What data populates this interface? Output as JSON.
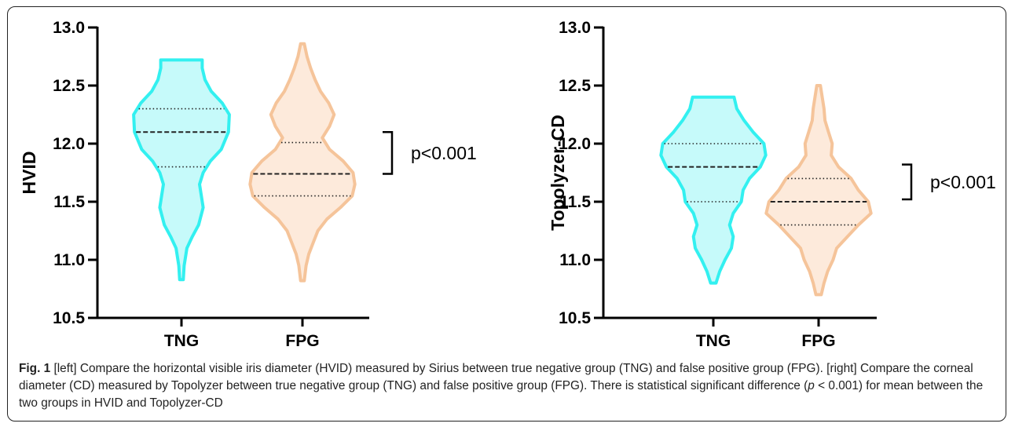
{
  "chart_data": [
    {
      "type": "violin",
      "ylabel": "HVID",
      "ylim": [
        10.5,
        13.0
      ],
      "yticks": [
        "13.0",
        "12.5",
        "12.0",
        "11.5",
        "11.0",
        "10.5"
      ],
      "categories": [
        "TNG",
        "FPG"
      ],
      "colors": {
        "TNG": "#33f0f0",
        "FPG": "#f5c49a"
      },
      "fills": {
        "TNG": "#c6fafa",
        "FPG": "#fdeadb"
      },
      "series": [
        {
          "name": "TNG",
          "range": [
            10.83,
            12.72
          ],
          "median": 12.1,
          "q1": 11.8,
          "q3": 12.3,
          "density": [
            [
              10.83,
              0.02
            ],
            [
              10.95,
              0.03
            ],
            [
              11.1,
              0.06
            ],
            [
              11.2,
              0.12
            ],
            [
              11.3,
              0.19
            ],
            [
              11.45,
              0.24
            ],
            [
              11.55,
              0.22
            ],
            [
              11.65,
              0.2
            ],
            [
              11.75,
              0.24
            ],
            [
              11.85,
              0.32
            ],
            [
              11.95,
              0.44
            ],
            [
              12.1,
              0.52
            ],
            [
              12.25,
              0.53
            ],
            [
              12.35,
              0.45
            ],
            [
              12.45,
              0.33
            ],
            [
              12.55,
              0.26
            ],
            [
              12.65,
              0.23
            ],
            [
              12.72,
              0.23
            ]
          ]
        },
        {
          "name": "FPG",
          "range": [
            10.82,
            12.86
          ],
          "median": 11.74,
          "q1": 11.55,
          "q3": 12.01,
          "density": [
            [
              10.82,
              0.02
            ],
            [
              10.95,
              0.04
            ],
            [
              11.05,
              0.07
            ],
            [
              11.15,
              0.12
            ],
            [
              11.25,
              0.17
            ],
            [
              11.35,
              0.27
            ],
            [
              11.45,
              0.42
            ],
            [
              11.55,
              0.55
            ],
            [
              11.65,
              0.58
            ],
            [
              11.75,
              0.56
            ],
            [
              11.85,
              0.45
            ],
            [
              11.95,
              0.3
            ],
            [
              12.05,
              0.22
            ],
            [
              12.15,
              0.3
            ],
            [
              12.25,
              0.35
            ],
            [
              12.35,
              0.29
            ],
            [
              12.45,
              0.2
            ],
            [
              12.55,
              0.14
            ],
            [
              12.65,
              0.09
            ],
            [
              12.75,
              0.05
            ],
            [
              12.86,
              0.02
            ]
          ]
        }
      ],
      "annotation": "p<0.001"
    },
    {
      "type": "violin",
      "ylabel": "Topolyzer-CD",
      "ylim": [
        10.5,
        13.0
      ],
      "yticks": [
        "13.0",
        "12.5",
        "12.0",
        "11.5",
        "11.0",
        "10.5"
      ],
      "categories": [
        "TNG",
        "FPG"
      ],
      "colors": {
        "TNG": "#33f0f0",
        "FPG": "#f5c49a"
      },
      "fills": {
        "TNG": "#c6fafa",
        "FPG": "#fdeadb"
      },
      "series": [
        {
          "name": "TNG",
          "range": [
            10.8,
            12.4
          ],
          "median": 11.8,
          "q1": 11.5,
          "q3": 12.0,
          "density": [
            [
              10.8,
              0.03
            ],
            [
              10.9,
              0.07
            ],
            [
              11.0,
              0.13
            ],
            [
              11.1,
              0.2
            ],
            [
              11.2,
              0.22
            ],
            [
              11.3,
              0.18
            ],
            [
              11.4,
              0.22
            ],
            [
              11.5,
              0.31
            ],
            [
              11.6,
              0.33
            ],
            [
              11.7,
              0.4
            ],
            [
              11.8,
              0.52
            ],
            [
              11.9,
              0.58
            ],
            [
              12.0,
              0.56
            ],
            [
              12.1,
              0.44
            ],
            [
              12.2,
              0.34
            ],
            [
              12.3,
              0.26
            ],
            [
              12.4,
              0.23
            ]
          ]
        },
        {
          "name": "FPG",
          "range": [
            10.7,
            12.5
          ],
          "median": 11.5,
          "q1": 11.3,
          "q3": 11.7,
          "density": [
            [
              10.7,
              0.03
            ],
            [
              10.8,
              0.06
            ],
            [
              10.9,
              0.1
            ],
            [
              11.0,
              0.16
            ],
            [
              11.1,
              0.2
            ],
            [
              11.2,
              0.32
            ],
            [
              11.3,
              0.44
            ],
            [
              11.4,
              0.58
            ],
            [
              11.5,
              0.55
            ],
            [
              11.6,
              0.44
            ],
            [
              11.7,
              0.36
            ],
            [
              11.8,
              0.22
            ],
            [
              11.9,
              0.14
            ],
            [
              12.0,
              0.15
            ],
            [
              12.1,
              0.11
            ],
            [
              12.2,
              0.07
            ],
            [
              12.3,
              0.06
            ],
            [
              12.4,
              0.04
            ],
            [
              12.5,
              0.02
            ]
          ]
        }
      ],
      "annotation": "p<0.001"
    }
  ],
  "caption": {
    "label": "Fig. 1",
    "text_1": " [left] Compare the horizontal visible iris diameter (HVID) measured by Sirius between true negative group (TNG) and false positive group (FPG). [right] Compare the corneal diameter (CD) measured by Topolyzer between true negative group (TNG) and false positive group (FPG). There is statistical significant difference (",
    "p_symbol": "p",
    "text_2": " < 0.001) for mean between the two groups in HVID and Topolyzer-CD"
  }
}
